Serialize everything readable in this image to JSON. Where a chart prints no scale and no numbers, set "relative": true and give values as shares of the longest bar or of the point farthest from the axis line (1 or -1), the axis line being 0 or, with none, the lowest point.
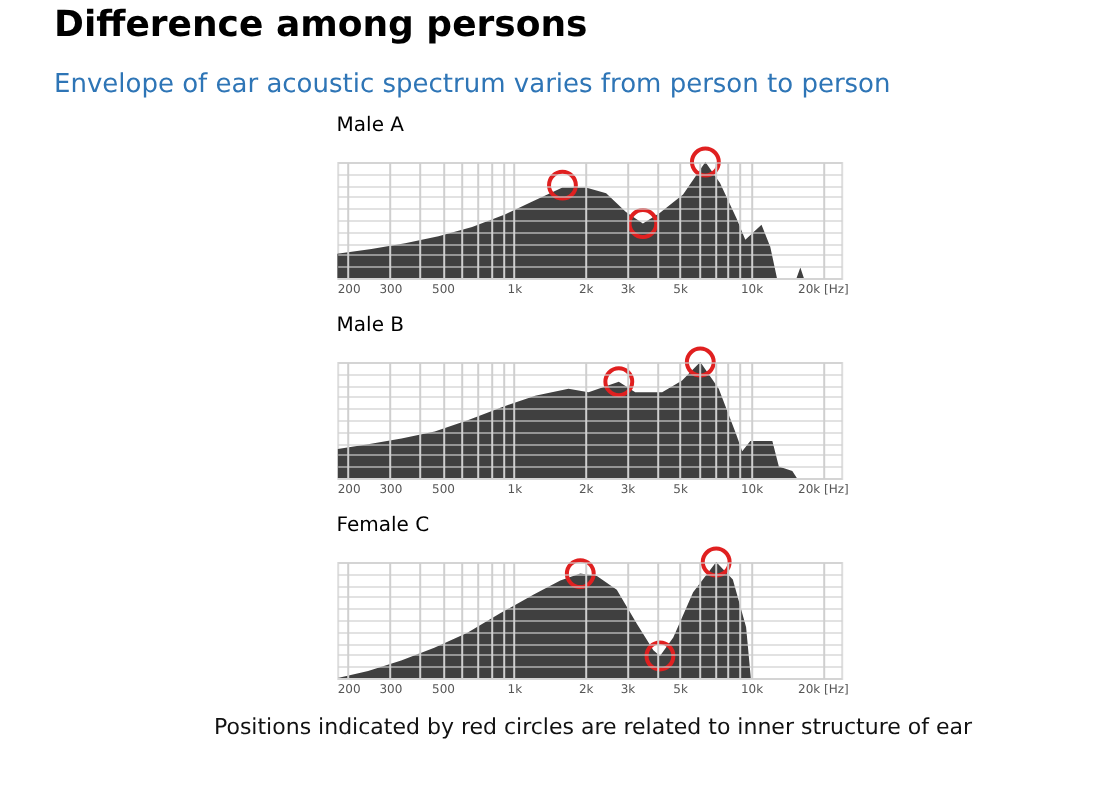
{
  "chart_data": [
    {
      "type": "area",
      "title": "Male A",
      "relative": true,
      "log": "x",
      "grid": true,
      "tick_labels": "x",
      "xlim": [
        180,
        24000
      ],
      "xticks": [
        200,
        300,
        {
          "value": 400,
          "label": null
        },
        500,
        {
          "value": 600,
          "label": null
        },
        {
          "value": 700,
          "label": null
        },
        {
          "value": 800,
          "label": null
        },
        {
          "value": 900,
          "label": null
        },
        {
          "value": 1000,
          "label": "1k"
        },
        {
          "value": 2000,
          "label": "2k"
        },
        {
          "value": 3000,
          "label": "3k"
        },
        {
          "value": 4000,
          "label": null
        },
        {
          "value": 5000,
          "label": "5k"
        },
        {
          "value": 6000,
          "label": null
        },
        {
          "value": 7000,
          "label": null
        },
        {
          "value": 8000,
          "label": null
        },
        {
          "value": 9000,
          "label": null
        },
        {
          "value": 10000,
          "label": "10k"
        },
        {
          "value": 20000,
          "label": "20k [Hz]"
        }
      ],
      "series": [
        {
          "type": "area",
          "color": "#404040",
          "x": [
            180,
            251,
            348,
            481,
            667,
            922,
            1197,
            1603,
            2013,
            2450,
            2970,
            3500,
            4120,
            5170,
            6420,
            7400,
            8700,
            9460,
            11070,
            12050,
            12860,
            15560,
            16140,
            16700,
            24000
          ],
          "values": [
            0.21,
            0.25,
            0.3,
            0.36,
            0.44,
            0.55,
            0.66,
            0.78,
            0.78,
            0.73,
            0.57,
            0.47,
            0.56,
            0.72,
            1.0,
            0.82,
            0.51,
            0.33,
            0.46,
            0.27,
            0,
            0,
            0.09,
            0,
            0
          ]
        },
        {
          "type": "scatter",
          "marker": "circle",
          "color": "#e02020",
          "x": [
            1603,
            3500,
            6420
          ],
          "values": [
            0.8,
            0.47,
            1.0
          ]
        }
      ]
    },
    {
      "type": "area",
      "title": "Male B",
      "relative": true,
      "log": "x",
      "grid": true,
      "tick_labels": "x",
      "xlim": [
        180,
        24000
      ],
      "xticks": [
        200,
        300,
        {
          "value": 400,
          "label": null
        },
        500,
        {
          "value": 600,
          "label": null
        },
        {
          "value": 700,
          "label": null
        },
        {
          "value": 800,
          "label": null
        },
        {
          "value": 900,
          "label": null
        },
        {
          "value": 1000,
          "label": "1k"
        },
        {
          "value": 2000,
          "label": "2k"
        },
        {
          "value": 3000,
          "label": "3k"
        },
        {
          "value": 4000,
          "label": null
        },
        {
          "value": 5000,
          "label": "5k"
        },
        {
          "value": 6000,
          "label": null
        },
        {
          "value": 7000,
          "label": null
        },
        {
          "value": 8000,
          "label": null
        },
        {
          "value": 9000,
          "label": null
        },
        {
          "value": 10000,
          "label": "10k"
        },
        {
          "value": 20000,
          "label": "20k [Hz]"
        }
      ],
      "series": [
        {
          "type": "area",
          "color": "#404040",
          "x": [
            181,
            243,
            336,
            464,
            643,
            889,
            1230,
            1700,
            2065,
            2770,
            3250,
            4220,
            5120,
            6110,
            7310,
            8610,
            9180,
            9930,
            12300,
            13100,
            14930,
            15600,
            24000
          ],
          "values": [
            0.25,
            0.29,
            0.34,
            0.4,
            0.5,
            0.61,
            0.71,
            0.77,
            0.74,
            0.83,
            0.74,
            0.74,
            0.84,
            1.0,
            0.77,
            0.39,
            0.23,
            0.32,
            0.32,
            0.1,
            0.06,
            0,
            0
          ]
        },
        {
          "type": "scatter",
          "marker": "circle",
          "color": "#e02020",
          "x": [
            2770,
            6110
          ],
          "values": [
            0.83,
            1.0
          ]
        }
      ]
    },
    {
      "type": "area",
      "title": "Female C",
      "relative": true,
      "log": "x",
      "grid": true,
      "tick_labels": "x",
      "xlim": [
        180,
        24000
      ],
      "xticks": [
        200,
        300,
        {
          "value": 400,
          "label": null
        },
        500,
        {
          "value": 600,
          "label": null
        },
        {
          "value": 700,
          "label": null
        },
        {
          "value": 800,
          "label": null
        },
        {
          "value": 900,
          "label": null
        },
        {
          "value": 1000,
          "label": "1k"
        },
        {
          "value": 2000,
          "label": "2k"
        },
        {
          "value": 3000,
          "label": "3k"
        },
        {
          "value": 4000,
          "label": null
        },
        {
          "value": 5000,
          "label": "5k"
        },
        {
          "value": 6000,
          "label": null
        },
        {
          "value": 7000,
          "label": null
        },
        {
          "value": 8000,
          "label": null
        },
        {
          "value": 9000,
          "label": null
        },
        {
          "value": 10000,
          "label": "10k"
        },
        {
          "value": 20000,
          "label": "20k [Hz]"
        }
      ],
      "series": [
        {
          "type": "area",
          "color": "#404040",
          "x": [
            181,
            243,
            335,
            462,
            637,
            879,
            1213,
            1570,
            1906,
            2240,
            2716,
            3295,
            3874,
            4130,
            4700,
            5700,
            7130,
            8380,
            9530,
            9980,
            24000
          ],
          "values": [
            0,
            0.06,
            0.15,
            0.26,
            0.39,
            0.56,
            0.72,
            0.84,
            0.9,
            0.88,
            0.76,
            0.47,
            0.24,
            0.19,
            0.35,
            0.74,
            1.0,
            0.85,
            0.44,
            0,
            0
          ]
        },
        {
          "type": "scatter",
          "marker": "circle",
          "color": "#e02020",
          "x": [
            1906,
            4130,
            7130
          ],
          "values": [
            0.9,
            0.19,
            1.0
          ]
        }
      ]
    },
    {
      "type": "other",
      "title": "Difference among persons",
      "subtitle": "Envelope of ear acoustic spectrum varies from person to person",
      "annotations": [
        "Positions indicated by red circles are related to inner structure of ear"
      ]
    }
  ]
}
